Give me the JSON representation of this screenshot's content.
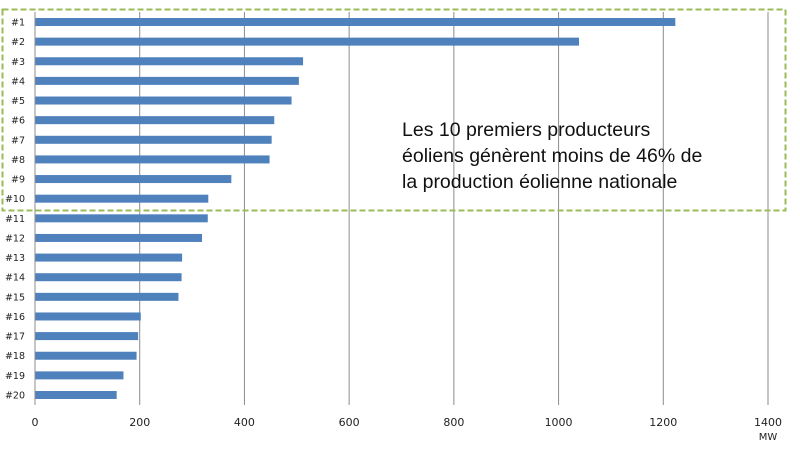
{
  "chart_data": {
    "type": "bar",
    "orientation": "horizontal",
    "categories": [
      "#1",
      "#2",
      "#3",
      "#4",
      "#5",
      "#6",
      "#7",
      "#8",
      "#9",
      "#10",
      "#11",
      "#12",
      "#13",
      "#14",
      "#15",
      "#16",
      "#17",
      "#18",
      "#19",
      "#20"
    ],
    "values": [
      1223,
      1039,
      512,
      504,
      490,
      457,
      452,
      448,
      375,
      331,
      330,
      319,
      281,
      280,
      274,
      202,
      197,
      194,
      169,
      156
    ],
    "xlabel": "MW",
    "xlim": [
      0,
      1400
    ],
    "xticks": [
      "0",
      "200",
      "400",
      "600",
      "800",
      "1000",
      "1200",
      "1400"
    ],
    "grid": "vertical",
    "bar_color": "#4f81bd",
    "highlight_box_color": "#9bbb59",
    "highlight_range": [
      "#1",
      "#10"
    ],
    "annotation": [
      "Les 10 premiers producteurs",
      "éoliens génèrent moins de 46% de",
      "la production éolienne nationale"
    ]
  }
}
